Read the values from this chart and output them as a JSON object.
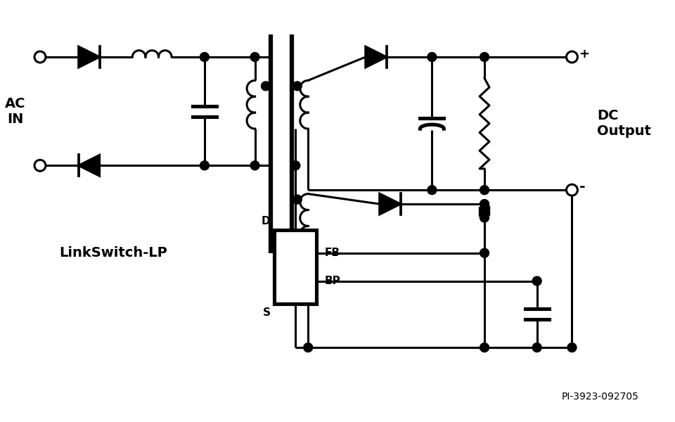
{
  "bg_color": "#ffffff",
  "lc": "#000000",
  "lw": 2.2,
  "lw_thick": 4.5,
  "label_ac_in": "AC\nIN",
  "label_dc_output": "DC\nOutput",
  "label_linkswitch": "LinkSwitch-LP",
  "label_pi": "PI-3923-092705",
  "label_D": "D",
  "label_FB": "FB",
  "label_BP": "BP",
  "label_S": "S",
  "label_plus": "+",
  "label_minus": "-"
}
